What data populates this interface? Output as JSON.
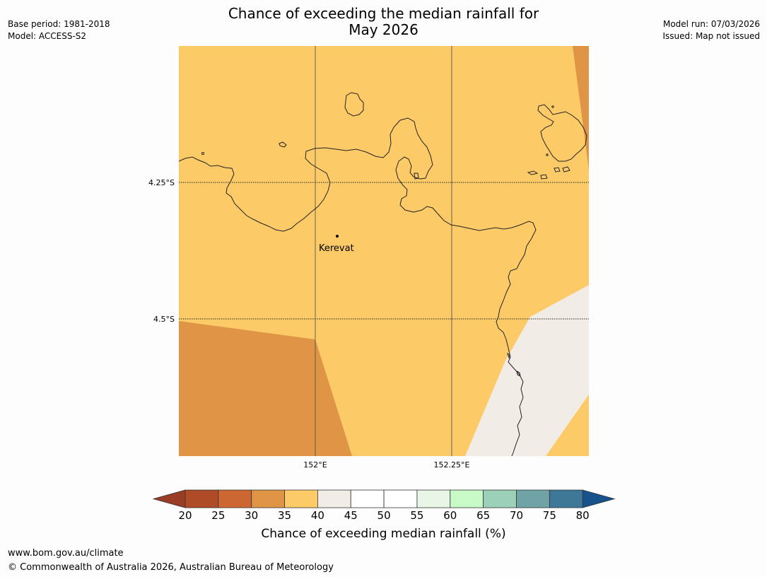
{
  "header": {
    "title_line1": "Chance of exceeding the median rainfall for",
    "title_line2": "May 2026",
    "base_period": "Base period: 1981-2018",
    "model": "Model: ACCESS-S2",
    "model_run": "Model run: 07/03/2026",
    "issued": "Issued: Map not issued"
  },
  "map": {
    "lat_labels": [
      "4.25°S",
      "4.5°S"
    ],
    "lon_labels": [
      "152°E",
      "152.25°E"
    ],
    "place": {
      "name": "Kerevat"
    },
    "colors": {
      "band_35_40": "#fdca68",
      "band_30_35": "#df9545",
      "band_40_45": "#f1ece6",
      "coastline": "#222222"
    }
  },
  "colorbar": {
    "title": "Chance of exceeding median rainfall (%)",
    "ticks": [
      "20",
      "25",
      "30",
      "35",
      "40",
      "45",
      "50",
      "55",
      "60",
      "65",
      "70",
      "75",
      "80"
    ],
    "under_color": "#9a3d25",
    "over_color": "#17528c",
    "bins": [
      {
        "range": "20-25",
        "color": "#b04b27"
      },
      {
        "range": "25-30",
        "color": "#cc6733"
      },
      {
        "range": "30-35",
        "color": "#df9545"
      },
      {
        "range": "35-40",
        "color": "#fdca68"
      },
      {
        "range": "40-45",
        "color": "#f1ece6"
      },
      {
        "range": "45-50",
        "color": "#ffffff"
      },
      {
        "range": "50-55",
        "color": "#ffffff"
      },
      {
        "range": "55-60",
        "color": "#e8f6e8"
      },
      {
        "range": "60-65",
        "color": "#c8fac8"
      },
      {
        "range": "65-70",
        "color": "#9dd0b8"
      },
      {
        "range": "70-75",
        "color": "#6fa3a5"
      },
      {
        "range": "75-80",
        "color": "#3e7898"
      }
    ]
  },
  "footer": {
    "url": "www.bom.gov.au/climate",
    "copyright": "© Commonwealth of Australia 2026, Australian Bureau of Meteorology"
  }
}
